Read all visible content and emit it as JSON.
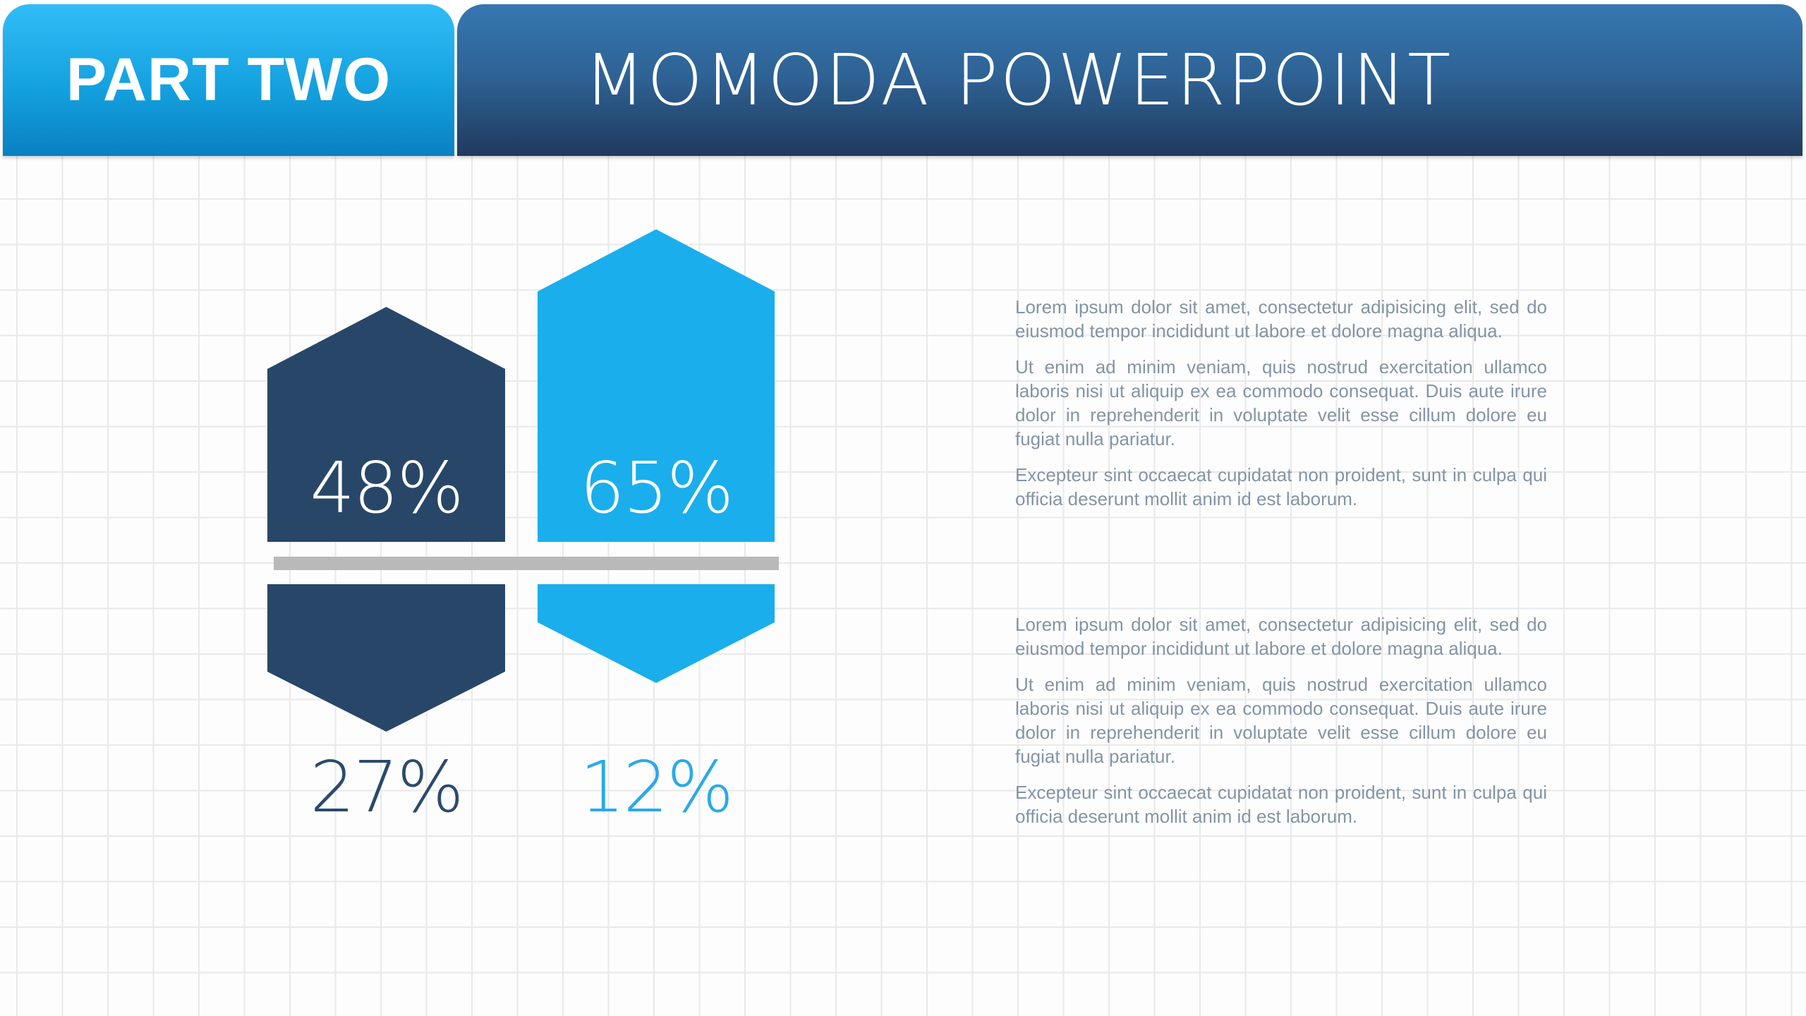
{
  "header": {
    "part_label": "PART TWO",
    "title": "MOMODA POWERPOINT"
  },
  "infographic": {
    "items": [
      {
        "id": "navy",
        "top_value": "48%",
        "bottom_value": "27%"
      },
      {
        "id": "sky-blue",
        "top_value": "65%",
        "bottom_value": "12%"
      }
    ],
    "colors": {
      "navy": "#284768",
      "sky_blue": "#1aaeec",
      "divider_gray": "#b9b9b9",
      "tab_gradient_top": "#31bdf7",
      "tab_gradient_bottom": "#0a80c2",
      "banner_gradient_top": "#3677b1",
      "banner_gradient_bottom": "#203a5e",
      "body_text": "#8494a5",
      "grid_line": "#e9e9e9"
    }
  },
  "chart_data": {
    "type": "bar",
    "categories": [
      "navy-pentagon",
      "sky-blue-pentagon"
    ],
    "series": [
      {
        "name": "upper values",
        "values": [
          48,
          65
        ]
      },
      {
        "name": "lower values",
        "values": [
          27,
          12
        ]
      }
    ],
    "title": "",
    "xlabel": "",
    "ylabel": "",
    "unit": "%"
  },
  "content": {
    "blocks": [
      {
        "paragraphs": [
          "Lorem ipsum dolor sit amet, consectetur adipisicing elit, sed do eiusmod tempor incididunt ut labore et dolore magna aliqua.",
          "Ut enim ad minim veniam, quis nostrud exercitation ullamco laboris nisi ut aliquip ex ea commodo consequat. Duis aute irure dolor in reprehenderit in voluptate velit esse cillum dolore eu fugiat nulla pariatur.",
          "Excepteur sint occaecat cupidatat non proident, sunt in culpa qui officia deserunt mollit anim id est laborum."
        ]
      },
      {
        "paragraphs": [
          "Lorem ipsum dolor sit amet, consectetur adipisicing elit, sed do eiusmod tempor incididunt ut labore et dolore magna aliqua.",
          "Ut enim ad minim veniam, quis nostrud exercitation ullamco laboris nisi ut aliquip ex ea commodo consequat. Duis aute irure dolor in reprehenderit in voluptate velit esse cillum dolore eu fugiat nulla pariatur.",
          "Excepteur sint occaecat cupidatat non proident, sunt in culpa qui officia deserunt mollit anim id est laborum."
        ]
      }
    ]
  }
}
